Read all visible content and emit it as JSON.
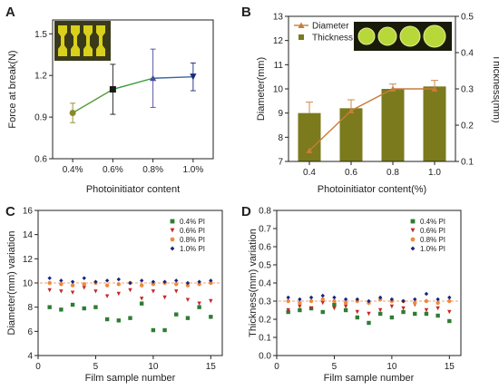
{
  "chart_data": [
    {
      "panel": "A",
      "type": "line",
      "xlabel": "Photoinitiator content",
      "ylabel": "Force at break(N)",
      "categories": [
        "0.4%",
        "0.6%",
        "0.8%",
        "1.0%"
      ],
      "values": [
        0.93,
        1.1,
        1.18,
        1.19
      ],
      "errors": [
        0.07,
        0.18,
        0.21,
        0.1
      ],
      "marker_colors": [
        "#8a8a2a",
        "#1a1a1a",
        "#4a4a9a",
        "#1a2a7a"
      ],
      "line_colors": [
        "#5a9a3a",
        "#3a9a3a",
        "#3a6aa0"
      ],
      "ylim": [
        0.6,
        1.6
      ],
      "yticks": [
        "0.6",
        "0.9",
        "1.2",
        "1.5"
      ]
    },
    {
      "panel": "B",
      "type": "bar",
      "xlabel": "Photoinitiator content(%)",
      "ylabel": "Diameter(mm)",
      "y2label": "Thickness(mm)",
      "categories": [
        "0.4",
        "0.6",
        "0.8",
        "1.0"
      ],
      "diameter": [
        9.0,
        9.2,
        10.0,
        10.1
      ],
      "diameter_err": [
        0.45,
        0.35,
        0.2,
        0.25
      ],
      "thickness": [
        0.13,
        0.24,
        0.3,
        0.3
      ],
      "thickness_err": [
        0.01,
        0.01,
        0.01,
        0.02
      ],
      "ylim": [
        7,
        13
      ],
      "yticks": [
        "7",
        "8",
        "9",
        "10",
        "11",
        "12",
        "13"
      ],
      "y2lim": [
        0.1,
        0.5
      ],
      "y2ticks": [
        "0.1",
        "0.2",
        "0.3",
        "0.4",
        "0.5"
      ],
      "legend": [
        "Diameter",
        "Thickness"
      ],
      "bar_color": "#7b7a1c",
      "line_color": "#c87c3a"
    },
    {
      "panel": "C",
      "type": "scatter",
      "xlabel": "Film sample number",
      "ylabel": "Diameter(mm) variation",
      "xlim": [
        0,
        16
      ],
      "xticks": [
        "0",
        "5",
        "10",
        "15"
      ],
      "ylim": [
        4,
        16
      ],
      "yticks": [
        "4",
        "6",
        "8",
        "10",
        "12",
        "14",
        "16"
      ],
      "x": [
        1,
        2,
        3,
        4,
        5,
        6,
        7,
        8,
        9,
        10,
        11,
        12,
        13,
        14,
        15
      ],
      "series": [
        {
          "name": "0.4% PI",
          "color": "#2e7d32",
          "marker": "square",
          "values": [
            8.0,
            7.8,
            8.2,
            7.9,
            8.0,
            7.0,
            6.9,
            7.1,
            8.3,
            6.1,
            6.1,
            7.4,
            7.1,
            8.0,
            7.2
          ]
        },
        {
          "name": "0.6% PI",
          "color": "#c62828",
          "marker": "triangle",
          "values": [
            9.4,
            9.3,
            9.2,
            9.6,
            9.3,
            8.9,
            9.1,
            9.4,
            8.7,
            9.3,
            8.8,
            9.3,
            8.6,
            8.3,
            8.5
          ]
        },
        {
          "name": "0.8% PI",
          "color": "#ef8a3a",
          "marker": "circle",
          "values": [
            10.0,
            9.9,
            9.8,
            9.9,
            10.0,
            9.8,
            9.9,
            10.0,
            9.8,
            9.9,
            10.0,
            9.9,
            9.8,
            9.9,
            10.0
          ]
        },
        {
          "name": "1.0% PI",
          "color": "#1a237e",
          "marker": "diamond",
          "values": [
            10.4,
            10.2,
            10.1,
            10.4,
            10.1,
            10.2,
            10.3,
            10.0,
            10.2,
            10.1,
            10.1,
            10.2,
            10.0,
            10.1,
            10.2
          ]
        }
      ],
      "ref_line": 10.0,
      "ref_color": "#f2a07a"
    },
    {
      "panel": "D",
      "type": "scatter",
      "xlabel": "Film sample number",
      "ylabel": "Thickness(mm) variation",
      "xlim": [
        0,
        16
      ],
      "xticks": [
        "0",
        "5",
        "10",
        "15"
      ],
      "ylim": [
        0.0,
        0.8
      ],
      "yticks": [
        "0.0",
        "0.1",
        "0.2",
        "0.3",
        "0.4",
        "0.5",
        "0.6",
        "0.7",
        "0.8"
      ],
      "x": [
        1,
        2,
        3,
        4,
        5,
        6,
        7,
        8,
        9,
        10,
        11,
        12,
        13,
        14,
        15
      ],
      "series": [
        {
          "name": "0.4% PI",
          "color": "#2e7d32",
          "marker": "square",
          "values": [
            0.24,
            0.25,
            0.26,
            0.24,
            0.28,
            0.25,
            0.21,
            0.18,
            0.23,
            0.21,
            0.24,
            0.23,
            0.23,
            0.22,
            0.19
          ]
        },
        {
          "name": "0.6% PI",
          "color": "#c62828",
          "marker": "triangle",
          "values": [
            0.25,
            0.27,
            0.26,
            0.29,
            0.26,
            0.27,
            0.24,
            0.23,
            0.25,
            0.27,
            0.26,
            0.28,
            0.25,
            0.26,
            0.24
          ]
        },
        {
          "name": "0.8% PI",
          "color": "#ef8a3a",
          "marker": "circle",
          "values": [
            0.3,
            0.29,
            0.3,
            0.31,
            0.3,
            0.29,
            0.3,
            0.29,
            0.31,
            0.3,
            0.3,
            0.29,
            0.3,
            0.29,
            0.3
          ]
        },
        {
          "name": "1.0% PI",
          "color": "#1a237e",
          "marker": "diamond",
          "values": [
            0.32,
            0.31,
            0.32,
            0.33,
            0.32,
            0.31,
            0.31,
            0.3,
            0.32,
            0.31,
            0.3,
            0.31,
            0.34,
            0.31,
            0.32
          ]
        }
      ],
      "ref_line": 0.3,
      "ref_color": "#f2a07a"
    }
  ],
  "panel_labels": [
    "A",
    "B",
    "C",
    "D"
  ]
}
